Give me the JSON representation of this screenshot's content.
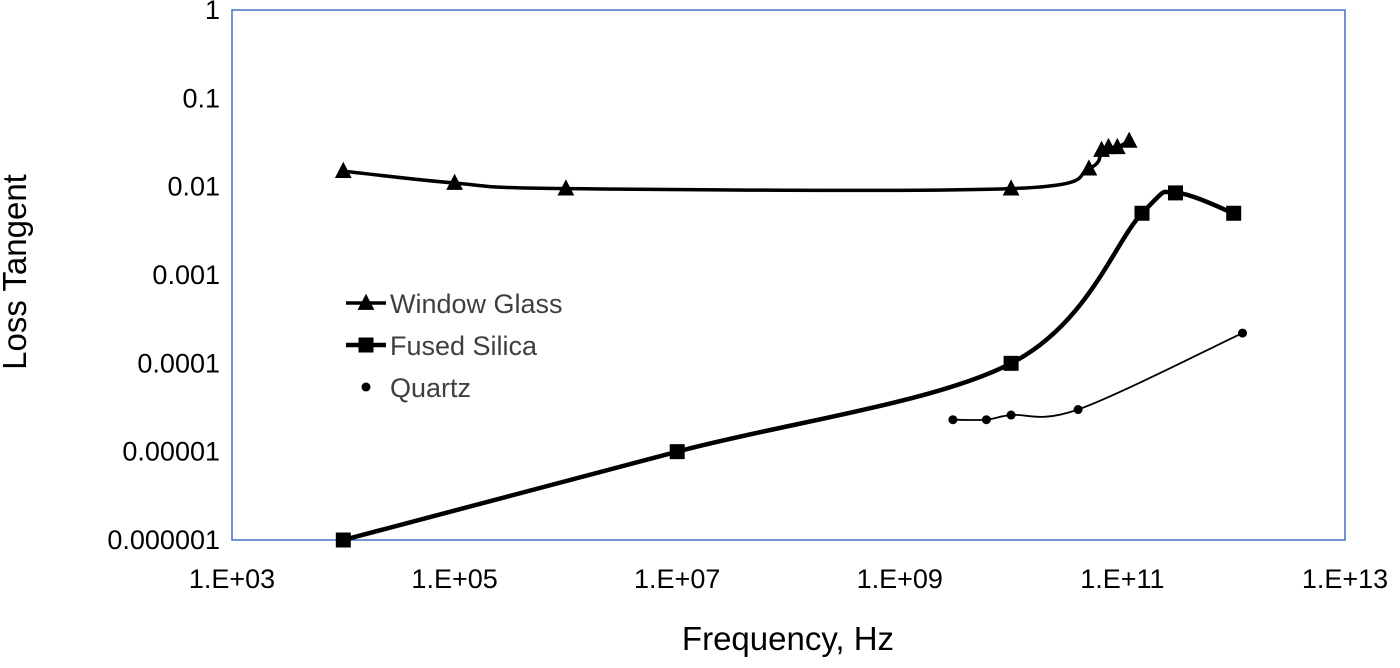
{
  "chart_data": {
    "type": "line",
    "title": "",
    "xlabel": "Frequency, Hz",
    "ylabel": "Loss Tangent",
    "x_scale": "log",
    "y_scale": "log",
    "xlim": [
      1000,
      10000000000000
    ],
    "ylim": [
      1e-06,
      1
    ],
    "grid": false,
    "legend_position": "inside-middle-left",
    "x_ticks": [
      {
        "value": 1000,
        "label": "1.E+03"
      },
      {
        "value": 100000,
        "label": "1.E+05"
      },
      {
        "value": 10000000,
        "label": "1.E+07"
      },
      {
        "value": 1000000000,
        "label": "1.E+09"
      },
      {
        "value": 100000000000,
        "label": "1.E+11"
      },
      {
        "value": 10000000000000,
        "label": "1.E+13"
      }
    ],
    "y_ticks": [
      {
        "value": 1,
        "label": "1"
      },
      {
        "value": 0.1,
        "label": "0.1"
      },
      {
        "value": 0.01,
        "label": "0.01"
      },
      {
        "value": 0.001,
        "label": "0.001"
      },
      {
        "value": 0.0001,
        "label": "0.0001"
      },
      {
        "value": 1e-05,
        "label": "0.00001"
      },
      {
        "value": 1e-06,
        "label": "0.000001"
      }
    ],
    "series": [
      {
        "name": "Window Glass",
        "marker": "triangle",
        "color": "#000000",
        "line_width": 3.5,
        "marker_size": 15,
        "legend_line": true,
        "points": [
          [
            10000,
            0.015
          ],
          [
            100000,
            0.011
          ],
          [
            1000000,
            0.0095
          ],
          [
            10000000000,
            0.0095
          ],
          [
            50000000000,
            0.016
          ],
          [
            65000000000,
            0.026
          ],
          [
            75000000000,
            0.028
          ],
          [
            90000000000,
            0.028
          ],
          [
            115000000000,
            0.033
          ]
        ]
      },
      {
        "name": "Fused Silica",
        "marker": "square",
        "color": "#000000",
        "line_width": 4.5,
        "marker_size": 15,
        "legend_line": true,
        "points": [
          [
            10000,
            1e-06
          ],
          [
            10000000,
            1e-05
          ],
          [
            10000000000,
            0.0001
          ],
          [
            150000000000,
            0.005
          ],
          [
            300000000000,
            0.0085
          ],
          [
            1000000000000,
            0.005
          ]
        ]
      },
      {
        "name": "Quartz",
        "marker": "circle",
        "color": "#000000",
        "line_width": 1.8,
        "marker_size": 9,
        "legend_line": false,
        "points": [
          [
            3000000000,
            2.3e-05
          ],
          [
            6000000000,
            2.3e-05
          ],
          [
            10000000000,
            2.6e-05
          ],
          [
            40000000000,
            3e-05
          ],
          [
            1200000000000,
            0.00022
          ]
        ]
      }
    ],
    "colors": {
      "line": "#000000",
      "plot_border": "#4472C4",
      "tick_text": "#000000",
      "legend_text": "#3f3f3f"
    }
  }
}
